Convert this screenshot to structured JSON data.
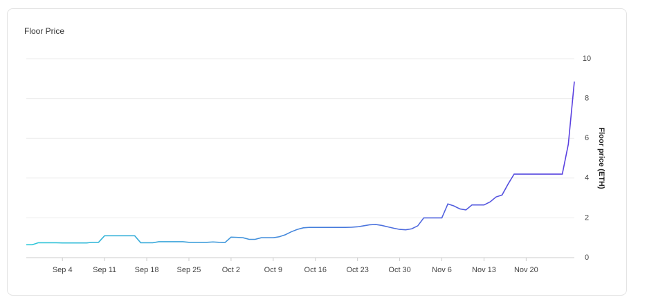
{
  "chart_data": {
    "type": "line",
    "title": "Floor Price",
    "y_label": "Floor price (ETH)",
    "x": [
      "Aug 29",
      "Aug 30",
      "Aug 31",
      "Sep 1",
      "Sep 2",
      "Sep 3",
      "Sep 4",
      "Sep 5",
      "Sep 6",
      "Sep 7",
      "Sep 8",
      "Sep 9",
      "Sep 10",
      "Sep 11",
      "Sep 12",
      "Sep 13",
      "Sep 14",
      "Sep 15",
      "Sep 16",
      "Sep 17",
      "Sep 18",
      "Sep 19",
      "Sep 20",
      "Sep 21",
      "Sep 22",
      "Sep 23",
      "Sep 24",
      "Sep 25",
      "Sep 26",
      "Sep 27",
      "Sep 28",
      "Sep 29",
      "Sep 30",
      "Oct 1",
      "Oct 2",
      "Oct 3",
      "Oct 4",
      "Oct 5",
      "Oct 6",
      "Oct 7",
      "Oct 8",
      "Oct 9",
      "Oct 10",
      "Oct 11",
      "Oct 12",
      "Oct 13",
      "Oct 14",
      "Oct 15",
      "Oct 16",
      "Oct 17",
      "Oct 18",
      "Oct 19",
      "Oct 20",
      "Oct 21",
      "Oct 22",
      "Oct 23",
      "Oct 24",
      "Oct 25",
      "Oct 26",
      "Oct 27",
      "Oct 28",
      "Oct 29",
      "Oct 30",
      "Oct 31",
      "Nov 1",
      "Nov 2",
      "Nov 3",
      "Nov 4",
      "Nov 5",
      "Nov 6",
      "Nov 7",
      "Nov 8",
      "Nov 9",
      "Nov 10",
      "Nov 11",
      "Nov 12",
      "Nov 13",
      "Nov 14",
      "Nov 15",
      "Nov 16",
      "Nov 17",
      "Nov 18",
      "Nov 19",
      "Nov 20",
      "Nov 21",
      "Nov 22",
      "Nov 23",
      "Nov 24",
      "Nov 25",
      "Nov 26",
      "Nov 27",
      "Nov 28"
    ],
    "values": [
      0.65,
      0.65,
      0.75,
      0.75,
      0.75,
      0.75,
      0.74,
      0.74,
      0.74,
      0.74,
      0.74,
      0.77,
      0.77,
      1.1,
      1.1,
      1.1,
      1.1,
      1.1,
      1.1,
      0.75,
      0.75,
      0.75,
      0.8,
      0.8,
      0.8,
      0.8,
      0.8,
      0.77,
      0.77,
      0.77,
      0.77,
      0.79,
      0.77,
      0.76,
      1.03,
      1.02,
      1.0,
      0.92,
      0.92,
      1.0,
      1.0,
      1.0,
      1.05,
      1.15,
      1.3,
      1.42,
      1.5,
      1.52,
      1.52,
      1.52,
      1.52,
      1.52,
      1.52,
      1.52,
      1.53,
      1.55,
      1.6,
      1.65,
      1.67,
      1.62,
      1.55,
      1.48,
      1.42,
      1.4,
      1.45,
      1.6,
      2.0,
      2.0,
      2.0,
      2.0,
      2.7,
      2.6,
      2.45,
      2.4,
      2.65,
      2.65,
      2.65,
      2.8,
      3.05,
      3.15,
      3.7,
      4.2,
      4.2,
      4.2,
      4.2,
      4.2,
      4.2,
      4.2,
      4.2,
      4.2,
      5.7,
      8.85
    ],
    "xticks": [
      "Sep 4",
      "Sep 11",
      "Sep 18",
      "Sep 25",
      "Oct 2",
      "Oct 9",
      "Oct 16",
      "Oct 23",
      "Oct 30",
      "Nov 6",
      "Nov 13",
      "Nov 20"
    ],
    "ylim": [
      0,
      10
    ],
    "yticks": [
      0,
      2,
      4,
      6,
      8,
      10
    ],
    "grid": true,
    "gradient": [
      "#2ec8d8",
      "#5b3ee0"
    ]
  }
}
